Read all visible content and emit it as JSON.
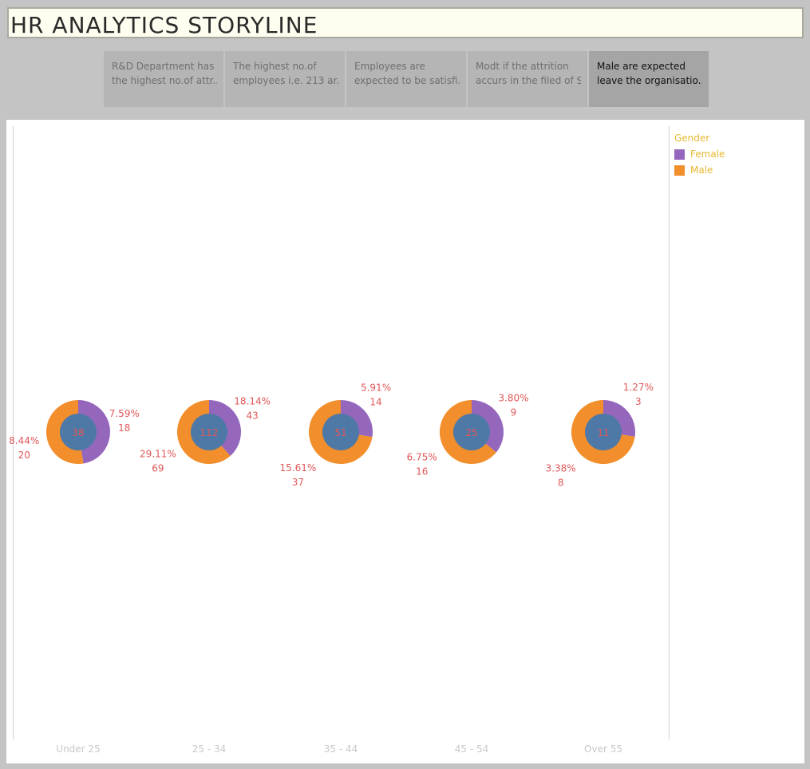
{
  "title": "HR ANALYTICS STORYLINE",
  "story_points": [
    {
      "line1": "R&D Department has",
      "line2": "the highest no.of attr..",
      "active": false
    },
    {
      "line1": "The highest no.of",
      "line2": "employees i.e. 213 ar..",
      "active": false
    },
    {
      "line1": "Employees are",
      "line2": "expected to be satisfi..",
      "active": false
    },
    {
      "line1": "Modt if the attrition",
      "line2": "accurs in the filed of S..",
      "active": false
    },
    {
      "line1": "Male are expected",
      "line2": "leave the organisatio..",
      "active": true
    }
  ],
  "legend": {
    "title": "Gender",
    "items": [
      {
        "label": "Female",
        "color": "#9467bd"
      },
      {
        "label": "Male",
        "color": "#f28e2b"
      }
    ]
  },
  "colors": {
    "female": "#9467bd",
    "male": "#f28e2b",
    "center": "#4e79a7",
    "label": "#e15759",
    "axis_label": "#c8c8c8"
  },
  "chart_data": {
    "type": "pie",
    "subtype": "donut",
    "categories": [
      "Under 25",
      "25 - 34",
      "35 - 44",
      "45 - 54",
      "Over 55"
    ],
    "totals": [
      38,
      112,
      51,
      25,
      11
    ],
    "series": [
      {
        "name": "Female",
        "values": [
          18,
          43,
          14,
          9,
          3
        ],
        "percent_labels": [
          "7.59%",
          "18.14%",
          "5.91%",
          "3.80%",
          "1.27%"
        ]
      },
      {
        "name": "Male",
        "values": [
          20,
          69,
          37,
          16,
          8
        ],
        "percent_labels": [
          "8.44%",
          "29.11%",
          "15.61%",
          "6.75%",
          "3.38%"
        ]
      }
    ],
    "total_labels": [
      "38",
      "112",
      "51",
      "25",
      "11"
    ],
    "female_count_labels": [
      "18",
      "43",
      "14",
      "9",
      "3"
    ],
    "male_count_labels": [
      "20",
      "69",
      "37",
      "16",
      "8"
    ],
    "legend_position": "right"
  }
}
